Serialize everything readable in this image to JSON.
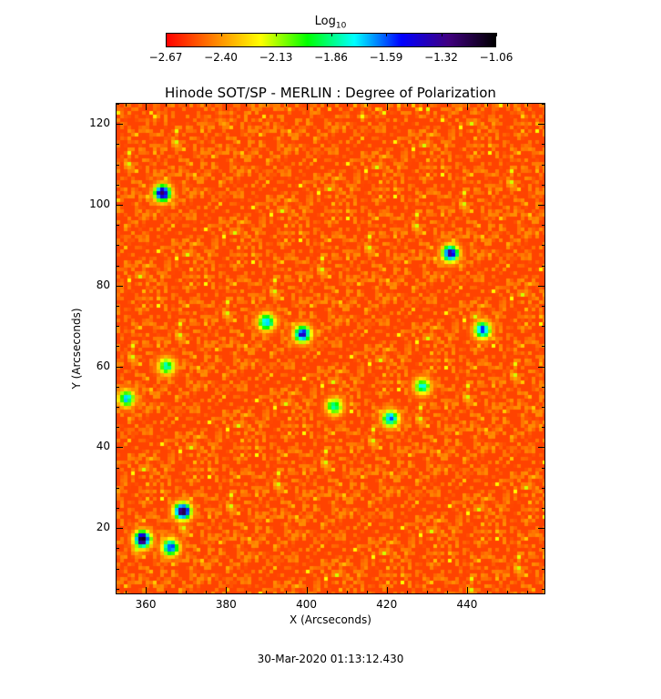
{
  "chart_data": {
    "type": "heatmap",
    "title": "Hinode SOT/SP - MERLIN : Degree of Polarization",
    "xlabel": "X (Arcseconds)",
    "ylabel": "Y (Arcseconds)",
    "xlim": [
      352.5,
      459.5
    ],
    "ylim": [
      3.6,
      125.2
    ],
    "xticks": [
      360,
      380,
      400,
      420,
      440
    ],
    "yticks": [
      20,
      40,
      60,
      80,
      100,
      120
    ],
    "colorbar": {
      "title": "Log",
      "title_sub": "10",
      "range": [
        -2.67,
        -1.06
      ],
      "ticks": [
        "-2.67",
        "-2.40",
        "-2.13",
        "-1.86",
        "-1.59",
        "-1.32",
        "-1.06"
      ],
      "colormap": [
        "#ff0000",
        "#ff8000",
        "#ffff00",
        "#00ff00",
        "#00ffff",
        "#0000ff",
        "#400080",
        "#000000"
      ],
      "placement": "top"
    },
    "background_level": -2.55,
    "high_polarization_regions": [
      {
        "x": 359,
        "y": 17,
        "value": -1.1
      },
      {
        "x": 369,
        "y": 24,
        "value": -1.1
      },
      {
        "x": 366,
        "y": 15,
        "value": -1.5
      },
      {
        "x": 364,
        "y": 103,
        "value": -1.2
      },
      {
        "x": 436,
        "y": 88,
        "value": -1.3
      },
      {
        "x": 399,
        "y": 68,
        "value": -1.4
      },
      {
        "x": 390,
        "y": 71,
        "value": -1.6
      },
      {
        "x": 444,
        "y": 69,
        "value": -1.5
      },
      {
        "x": 421,
        "y": 47,
        "value": -1.6
      },
      {
        "x": 365,
        "y": 60,
        "value": -1.8
      },
      {
        "x": 355,
        "y": 52,
        "value": -1.7
      },
      {
        "x": 407,
        "y": 50,
        "value": -1.8
      },
      {
        "x": 429,
        "y": 55,
        "value": -1.8
      }
    ]
  },
  "timestamp": "30-Mar-2020 01:13:12.430"
}
